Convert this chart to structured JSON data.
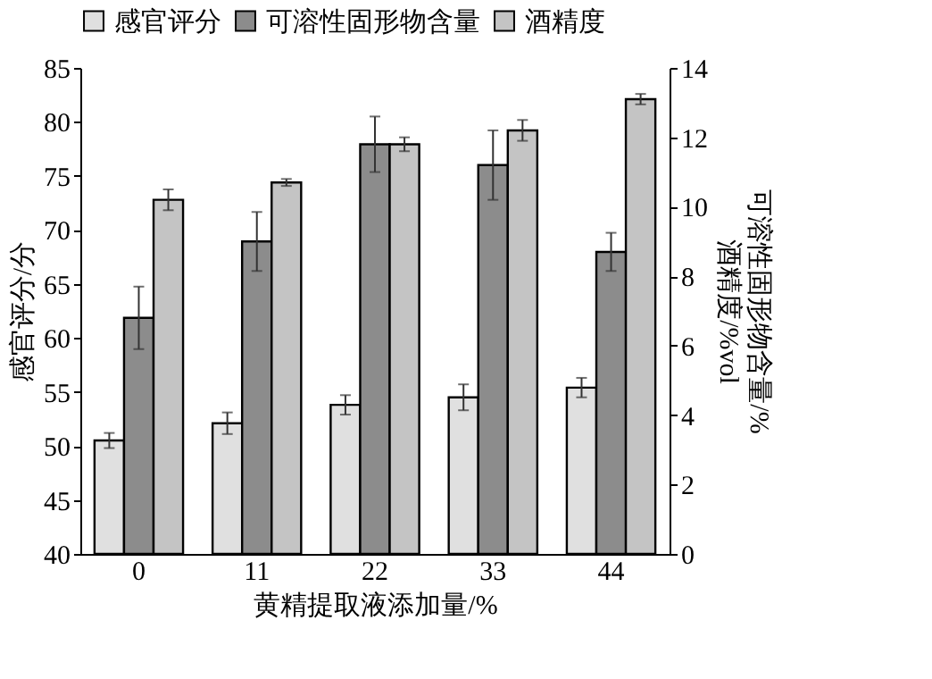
{
  "chart_data": {
    "type": "bar",
    "xlabel": "黄精提取液添加量/%",
    "ylabel": "感官评分/分",
    "y2label": "可溶性固形物含量/%\n酒精度/%vol",
    "categories": [
      "0",
      "11",
      "22",
      "33",
      "44"
    ],
    "series": [
      {
        "name": "感官评分",
        "color": "#e0e0e0",
        "values": [
          50.5,
          52.1,
          53.8,
          54.5,
          55.4
        ],
        "errors": [
          0.7,
          1.0,
          0.9,
          1.2,
          0.9
        ]
      },
      {
        "name": "可溶性固形物含量",
        "color": "#8c8c8c",
        "axis": "y2",
        "values": [
          6.8,
          9.0,
          11.8,
          11.2,
          8.7
        ],
        "errors": [
          0.9,
          0.85,
          0.8,
          1.0,
          0.55
        ]
      },
      {
        "name": "酒精度",
        "color": "#c4c4c4",
        "axis": "y2",
        "values": [
          10.2,
          10.7,
          11.8,
          12.2,
          13.1
        ],
        "errors": [
          0.3,
          0.1,
          0.2,
          0.3,
          0.15
        ]
      }
    ],
    "ylim": [
      40,
      85
    ],
    "yticks": [
      40,
      45,
      50,
      55,
      60,
      65,
      70,
      75,
      80,
      85
    ],
    "y2lim": [
      0,
      14
    ],
    "y2ticks": [
      0,
      2,
      4,
      6,
      8,
      10,
      12,
      14
    ],
    "grid": false,
    "legend": "top"
  }
}
